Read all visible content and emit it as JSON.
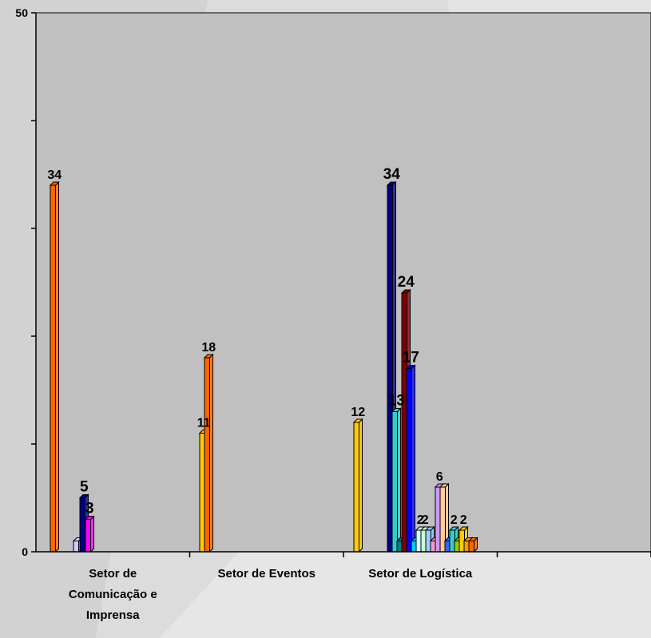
{
  "chart_data": {
    "type": "bar",
    "title": "",
    "xlabel": "",
    "ylabel": "",
    "ylim": [
      0,
      50
    ],
    "y_tick_labels": [
      "0",
      "50"
    ],
    "grid": false,
    "legend": "none",
    "categories": [
      [
        "Setor de",
        "Comunicação e",
        "Imprensa"
      ],
      [
        "Setor de Eventos"
      ],
      [
        "Setor de Logística"
      ]
    ],
    "groups": [
      {
        "category": "Setor de Comunicação e Imprensa",
        "bars": [
          {
            "value": 34,
            "color": "#ff6600",
            "label": "34"
          },
          {
            "value": 1,
            "color": "#ccccff",
            "label": ""
          },
          {
            "value": 5,
            "color": "#000080",
            "label": "5"
          },
          {
            "value": 3,
            "color": "#ff00ff",
            "label": "3"
          }
        ]
      },
      {
        "category": "Setor de Eventos",
        "bars": [
          {
            "value": 11,
            "color": "#ffcc00",
            "label": "11"
          },
          {
            "value": 18,
            "color": "#ff6600",
            "label": "18"
          }
        ]
      },
      {
        "category": "Setor de Logística",
        "bars": [
          {
            "value": 12,
            "color": "#ffcc00",
            "label": "12"
          },
          {
            "value": 34,
            "color": "#000080",
            "label": "34"
          },
          {
            "value": 13,
            "color": "#33cccc",
            "label": "13"
          },
          {
            "value": 1,
            "color": "#008080",
            "label": ""
          },
          {
            "value": 24,
            "color": "#800000",
            "label": "24"
          },
          {
            "value": 17,
            "color": "#0000ff",
            "label": "17"
          },
          {
            "value": 1,
            "color": "#00ccff",
            "label": ""
          },
          {
            "value": 2,
            "color": "#ccffff",
            "label": "2"
          },
          {
            "value": 2,
            "color": "#ccffcc",
            "label": "2"
          },
          {
            "value": 2,
            "color": "#99ccff",
            "label": ""
          },
          {
            "value": 1,
            "color": "#ff99cc",
            "label": ""
          },
          {
            "value": 6,
            "color": "#cc99ff",
            "label": "6"
          },
          {
            "value": 6,
            "color": "#ffcc99",
            "label": ""
          },
          {
            "value": 1,
            "color": "#3366ff",
            "label": ""
          },
          {
            "value": 2,
            "color": "#33cccc",
            "label": "2"
          },
          {
            "value": 1,
            "color": "#99cc00",
            "label": ""
          },
          {
            "value": 2,
            "color": "#ffcc00",
            "label": "2"
          },
          {
            "value": 1,
            "color": "#ff9900",
            "label": ""
          },
          {
            "value": 1,
            "color": "#ff6600",
            "label": ""
          }
        ]
      }
    ]
  },
  "colors": {
    "plot_background": "#c0c0c0",
    "page_background": "#d9d9d9",
    "bar_outline": "#000000"
  }
}
